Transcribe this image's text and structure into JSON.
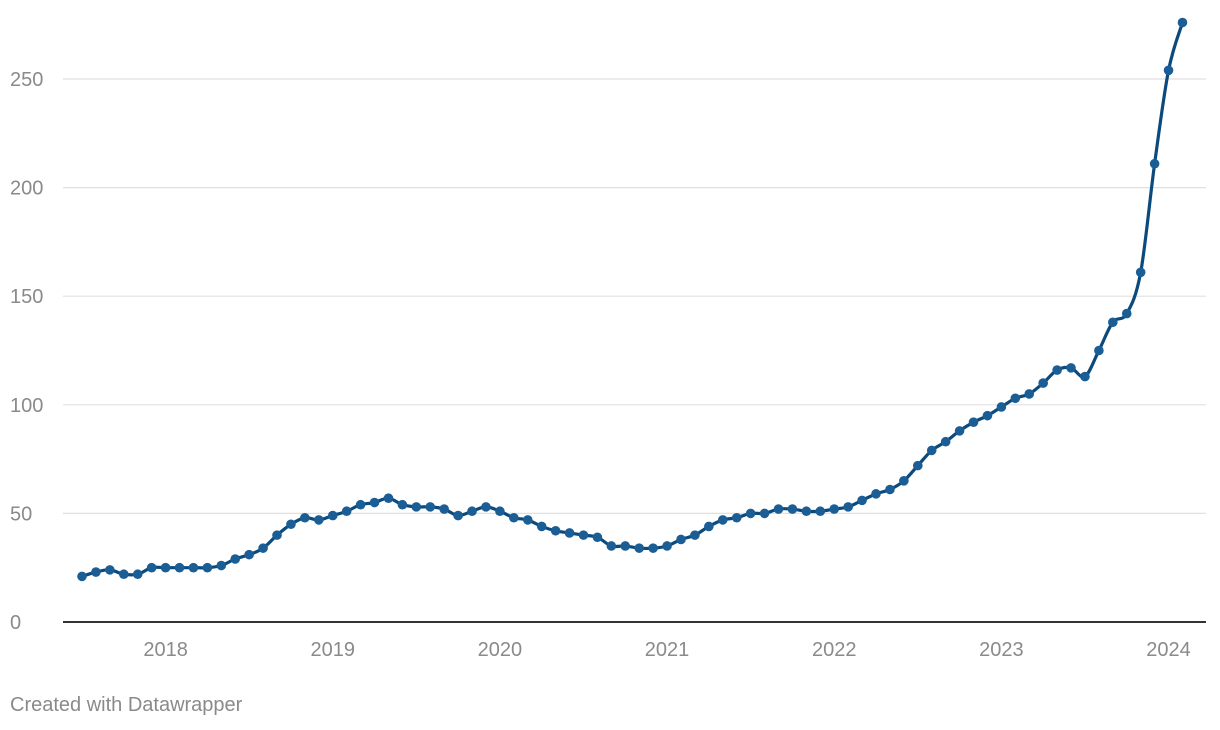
{
  "chart_data": {
    "type": "line",
    "title": "",
    "xlabel": "",
    "ylabel": "",
    "ylim": [
      0,
      276
    ],
    "yticks": [
      0,
      50,
      100,
      150,
      200,
      250
    ],
    "xticks": [
      "2018",
      "2019",
      "2020",
      "2021",
      "2022",
      "2023",
      "2024"
    ],
    "grid": true,
    "markers": true,
    "smooth": true,
    "colors": {
      "line": "#0b4a7d",
      "marker": "#1b5e95",
      "grid": "#e0e0e0",
      "axis": "#333333",
      "tick_text": "#8a8a8a"
    },
    "series": [
      {
        "x": [
          "2017-07",
          "2017-08",
          "2017-09",
          "2017-10",
          "2017-11",
          "2017-12",
          "2018-01",
          "2018-02",
          "2018-03",
          "2018-04",
          "2018-05",
          "2018-06",
          "2018-07",
          "2018-08",
          "2018-09",
          "2018-10",
          "2018-11",
          "2018-12",
          "2019-01",
          "2019-02",
          "2019-03",
          "2019-04",
          "2019-05",
          "2019-06",
          "2019-07",
          "2019-08",
          "2019-09",
          "2019-10",
          "2019-11",
          "2019-12",
          "2020-01",
          "2020-02",
          "2020-03",
          "2020-04",
          "2020-05",
          "2020-06",
          "2020-07",
          "2020-08",
          "2020-09",
          "2020-10",
          "2020-11",
          "2020-12",
          "2021-01",
          "2021-02",
          "2021-03",
          "2021-04",
          "2021-05",
          "2021-06",
          "2021-07",
          "2021-08",
          "2021-09",
          "2021-10",
          "2021-11",
          "2021-12",
          "2022-01",
          "2022-02",
          "2022-03",
          "2022-04",
          "2022-05",
          "2022-06",
          "2022-07",
          "2022-08",
          "2022-09",
          "2022-10",
          "2022-11",
          "2022-12",
          "2023-01",
          "2023-02",
          "2023-03",
          "2023-04",
          "2023-05",
          "2023-06",
          "2023-07",
          "2023-08",
          "2023-09",
          "2023-10",
          "2023-11",
          "2023-12",
          "2024-01",
          "2024-02"
        ],
        "values": [
          21,
          23,
          24,
          22,
          22,
          25,
          25,
          25,
          25,
          25,
          26,
          29,
          31,
          34,
          40,
          45,
          48,
          47,
          49,
          51,
          54,
          55,
          57,
          54,
          53,
          53,
          52,
          49,
          51,
          53,
          51,
          48,
          47,
          44,
          42,
          41,
          40,
          39,
          35,
          35,
          34,
          34,
          35,
          38,
          40,
          44,
          47,
          48,
          50,
          50,
          52,
          52,
          51,
          51,
          52,
          53,
          56,
          59,
          61,
          65,
          72,
          79,
          83,
          88,
          92,
          95,
          99,
          103,
          105,
          110,
          116,
          117,
          113,
          125,
          138,
          142,
          161,
          211,
          254,
          276
        ]
      }
    ]
  },
  "footer": {
    "credit": "Created with Datawrapper"
  }
}
